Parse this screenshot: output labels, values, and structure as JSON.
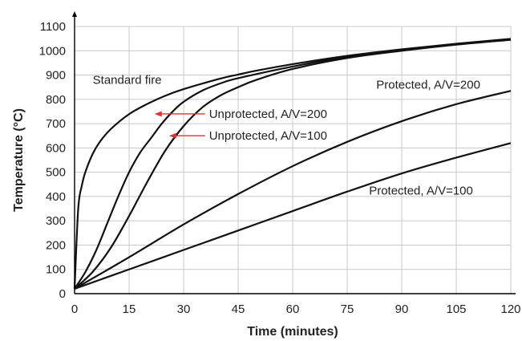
{
  "chart_data": {
    "type": "line",
    "title": "",
    "xlabel": "Time (minutes)",
    "ylabel": "Temperature (°C)",
    "xlim": [
      0,
      120
    ],
    "ylim": [
      0,
      1100
    ],
    "xticks": [
      0,
      15,
      30,
      45,
      60,
      75,
      90,
      105,
      120
    ],
    "yticks": [
      0,
      100,
      200,
      300,
      400,
      500,
      600,
      700,
      800,
      900,
      1000,
      1100
    ],
    "grid": true,
    "series": [
      {
        "name": "Standard fire",
        "x": [
          0,
          1,
          2,
          3,
          5,
          7,
          10,
          15,
          20,
          25,
          30,
          40,
          45,
          50,
          60,
          75,
          90,
          105,
          120
        ],
        "y": [
          20,
          349,
          445,
          502,
          576,
          626,
          678,
          739,
          781,
          815,
          842,
          885,
          902,
          918,
          945,
          979,
          1006,
          1029,
          1049
        ]
      },
      {
        "name": "Unprotected, A/V=200",
        "x": [
          0,
          3,
          6,
          9,
          12,
          15,
          18,
          21,
          24,
          27,
          30,
          35,
          40,
          45,
          60,
          75,
          90,
          105,
          120
        ],
        "y": [
          20,
          90,
          180,
          290,
          400,
          500,
          580,
          640,
          700,
          750,
          790,
          835,
          865,
          887,
          935,
          975,
          1003,
          1027,
          1047
        ]
      },
      {
        "name": "Unprotected, A/V=100",
        "x": [
          0,
          5,
          10,
          15,
          20,
          25,
          30,
          35,
          40,
          45,
          50,
          60,
          75,
          90,
          105,
          120
        ],
        "y": [
          20,
          90,
          190,
          320,
          460,
          590,
          690,
          765,
          815,
          850,
          880,
          925,
          970,
          1000,
          1025,
          1045
        ]
      },
      {
        "name": "Protected, A/V=200",
        "x": [
          0,
          15,
          30,
          45,
          60,
          75,
          90,
          105,
          120
        ],
        "y": [
          20,
          150,
          285,
          410,
          525,
          625,
          710,
          780,
          835
        ]
      },
      {
        "name": "Protected, A/V=100",
        "x": [
          0,
          15,
          30,
          45,
          60,
          75,
          90,
          105,
          120
        ],
        "y": [
          20,
          100,
          180,
          260,
          340,
          420,
          495,
          560,
          620
        ]
      }
    ],
    "annotations": [
      {
        "text": "Standard fire",
        "x": 5,
        "y": 880
      },
      {
        "text": "Unprotected, A/V=200",
        "x": 37,
        "y": 740,
        "arrow_to": [
          22,
          740
        ]
      },
      {
        "text": "Unprotected, A/V=100",
        "x": 37,
        "y": 650,
        "arrow_to": [
          26,
          650
        ]
      },
      {
        "text": "Protected, A/V=200",
        "x": 83,
        "y": 860
      },
      {
        "text": "Protected, A/V=100",
        "x": 81,
        "y": 425
      }
    ],
    "colors": {
      "curve": "#111111",
      "arrow": "#e03030",
      "grid": "#c8c8c8"
    }
  }
}
